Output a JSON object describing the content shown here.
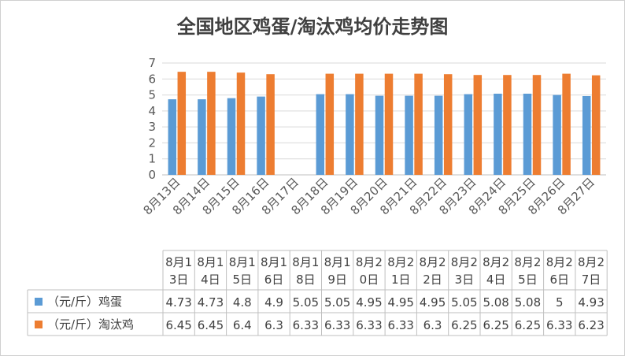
{
  "chart_data": {
    "type": "bar",
    "title": "全国地区鸡蛋/淘汰鸡均价走势图",
    "categories": [
      "8月13日",
      "8月14日",
      "8月15日",
      "8月16日",
      "8月17日",
      "8月18日",
      "8月19日",
      "8月20日",
      "8月21日",
      "8月22日",
      "8月23日",
      "8月24日",
      "8月25日",
      "8月26日",
      "8月27日"
    ],
    "table_headers": [
      [
        "8月1",
        "3日"
      ],
      [
        "8月1",
        "4日"
      ],
      [
        "8月1",
        "5日"
      ],
      [
        "8月1",
        "6日"
      ],
      [
        "8月1",
        "8日"
      ],
      [
        "8月1",
        "9日"
      ],
      [
        "8月2",
        "0日"
      ],
      [
        "8月2",
        "1日"
      ],
      [
        "8月2",
        "2日"
      ],
      [
        "8月2",
        "3日"
      ],
      [
        "8月2",
        "4日"
      ],
      [
        "8月2",
        "5日"
      ],
      [
        "8月2",
        "6日"
      ],
      [
        "8月2",
        "7日"
      ]
    ],
    "series": [
      {
        "name": "（元/斤）鸡蛋",
        "color": "#5b9bd5",
        "values": [
          4.73,
          4.73,
          4.8,
          4.9,
          null,
          5.05,
          5.05,
          4.95,
          4.95,
          4.95,
          5.05,
          5.08,
          5.08,
          5,
          4.93
        ],
        "table_values": [
          "4.73",
          "4.73",
          "4.8",
          "4.9",
          "5.05",
          "5.05",
          "4.95",
          "4.95",
          "4.95",
          "5.05",
          "5.08",
          "5.08",
          "5",
          "4.93"
        ]
      },
      {
        "name": "（元/斤）淘汰鸡",
        "color": "#ed7d31",
        "values": [
          6.45,
          6.45,
          6.4,
          6.3,
          null,
          6.33,
          6.33,
          6.33,
          6.33,
          6.3,
          6.25,
          6.25,
          6.25,
          6.33,
          6.23
        ],
        "table_values": [
          "6.45",
          "6.45",
          "6.4",
          "6.3",
          "6.33",
          "6.33",
          "6.33",
          "6.33",
          "6.3",
          "6.25",
          "6.25",
          "6.25",
          "6.33",
          "6.23"
        ]
      }
    ],
    "ylim": [
      0,
      7
    ],
    "yticks": [
      "0",
      "1",
      "2",
      "3",
      "4",
      "5",
      "6",
      "7"
    ],
    "grid": true,
    "legend": "table"
  }
}
